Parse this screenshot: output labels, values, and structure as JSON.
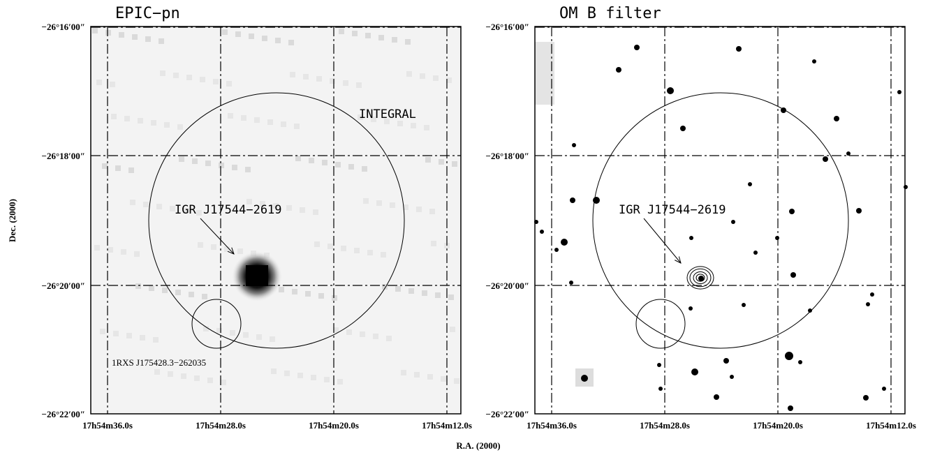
{
  "figure": {
    "axis_labels": {
      "x": "R.A. (2000)",
      "y": "Dec. (2000)"
    },
    "panels": [
      {
        "title": "EPIC−pn",
        "x_ticks": [
          "17h54m36.0s",
          "17h54m28.0s",
          "17h54m20.0s",
          "17h54m12.0s"
        ],
        "y_ticks": [
          "−26°16′00″",
          "−26°18′00″",
          "−26°20′00″",
          "−26°22′00″"
        ],
        "annotations": {
          "integral": "INTEGRAL",
          "source": "IGR J17544−2619",
          "rosat": "1RXS J175428.3−262035"
        }
      },
      {
        "title": "OM B filter",
        "x_ticks": [
          "17h54m36.0s",
          "17h54m28.0s",
          "17h54m20.0s",
          "17h54m12.0s"
        ],
        "y_ticks": [
          "−26°16′00″",
          "−26°18′00″",
          "−26°20′00″",
          "−26°22′00″"
        ],
        "annotations": {
          "source": "IGR J17544−2619"
        }
      }
    ]
  }
}
